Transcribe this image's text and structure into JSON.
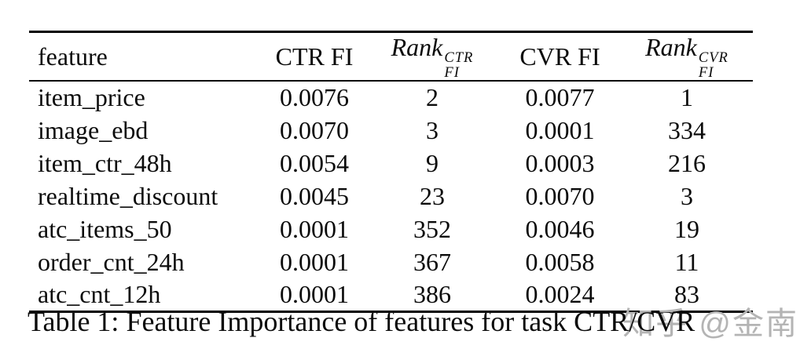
{
  "table": {
    "header": {
      "feature": "feature",
      "ctr_fi": "CTR FI",
      "rank_ctr": {
        "base": "Rank",
        "sup": "CTR",
        "sub": "FI"
      },
      "cvr_fi": "CVR FI",
      "rank_cvr": {
        "base": "Rank",
        "sup": "CVR",
        "sub": "FI"
      }
    },
    "rows": [
      [
        "item_price",
        "0.0076",
        "2",
        "0.0077",
        "1"
      ],
      [
        "image_ebd",
        "0.0070",
        "3",
        "0.0001",
        "334"
      ],
      [
        "item_ctr_48h",
        "0.0054",
        "9",
        "0.0003",
        "216"
      ],
      [
        "realtime_discount",
        "0.0045",
        "23",
        "0.0070",
        "3"
      ],
      [
        "atc_items_50",
        "0.0001",
        "352",
        "0.0046",
        "19"
      ],
      [
        "order_cnt_24h",
        "0.0001",
        "367",
        "0.0058",
        "11"
      ],
      [
        "atc_cnt_12h",
        "0.0001",
        "386",
        "0.0024",
        "83"
      ]
    ]
  },
  "caption": "Table 1: Feature Importance of features for task CTR/CVR",
  "watermark": "知乎 @金南",
  "colors": {
    "text": "#0b0b0b",
    "rule": "#000000",
    "watermark": "#b4b4b4",
    "background": "#ffffff"
  },
  "chart_data": {
    "type": "table",
    "title": "Table 1: Feature Importance of features for task CTR/CVR",
    "columns": [
      "feature",
      "CTR FI",
      "Rank_FI_CTR",
      "CVR FI",
      "Rank_FI_CVR"
    ],
    "rows": [
      [
        "item_price",
        0.0076,
        2,
        0.0077,
        1
      ],
      [
        "image_ebd",
        0.007,
        3,
        0.0001,
        334
      ],
      [
        "item_ctr_48h",
        0.0054,
        9,
        0.0003,
        216
      ],
      [
        "realtime_discount",
        0.0045,
        23,
        0.007,
        3
      ],
      [
        "atc_items_50",
        0.0001,
        352,
        0.0046,
        19
      ],
      [
        "order_cnt_24h",
        0.0001,
        367,
        0.0058,
        11
      ],
      [
        "atc_cnt_12h",
        0.0001,
        386,
        0.0024,
        83
      ]
    ]
  }
}
